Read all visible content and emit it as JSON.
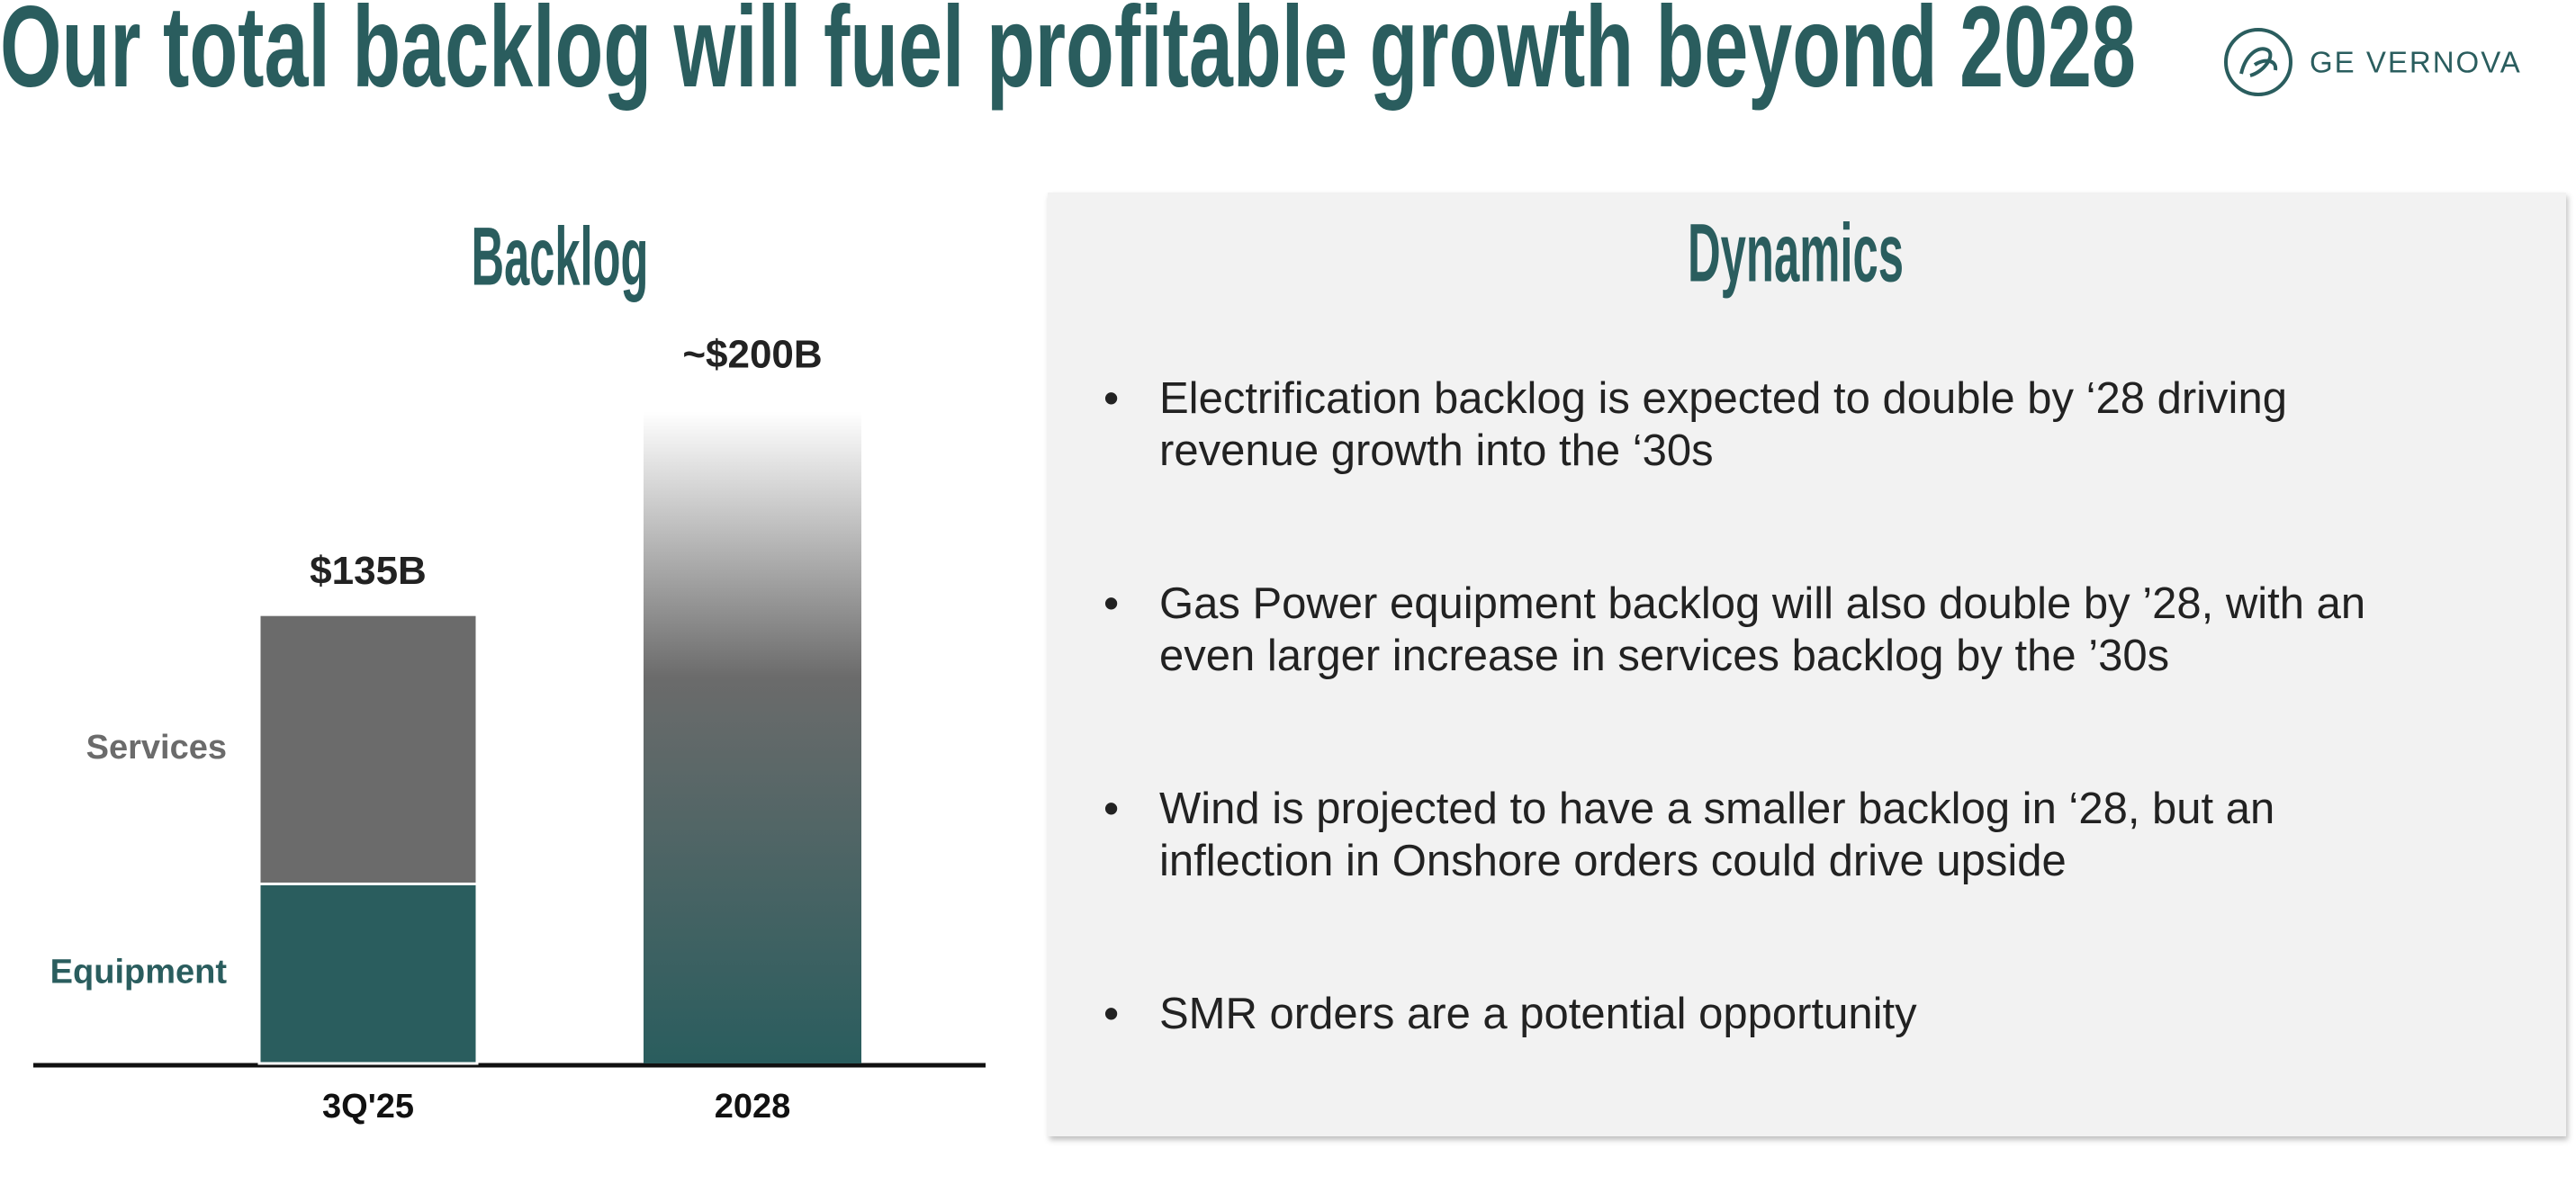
{
  "header": {
    "title": "Our total backlog will fuel profitable growth beyond 2028",
    "brand": "GE VERNOVA"
  },
  "chart_data": {
    "type": "bar",
    "title": "Backlog",
    "categories": [
      "3Q'25",
      "2028"
    ],
    "series": [
      {
        "name": "Equipment",
        "color": "#2a5d5e",
        "values": [
          54,
          null
        ]
      },
      {
        "name": "Services",
        "color": "#6b6b6b",
        "values": [
          81,
          null
        ]
      }
    ],
    "totals": [
      135,
      200
    ],
    "value_labels": [
      "$135B",
      "~$200B"
    ],
    "totals_colors": [
      "#ffffff",
      "#6b6b6b",
      "#2a5d5e"
    ]
  },
  "dynamics": {
    "title": "Dynamics",
    "bullets": [
      "Electrification backlog is expected to double by ‘28 driving revenue growth into the ‘30s",
      "Gas Power equipment backlog will also double by ’28, with an even larger increase in services backlog by the ’30s",
      "Wind is projected to have a smaller backlog in ‘28, but an inflection in Onshore orders could drive upside",
      "SMR orders are a potential opportunity"
    ]
  }
}
